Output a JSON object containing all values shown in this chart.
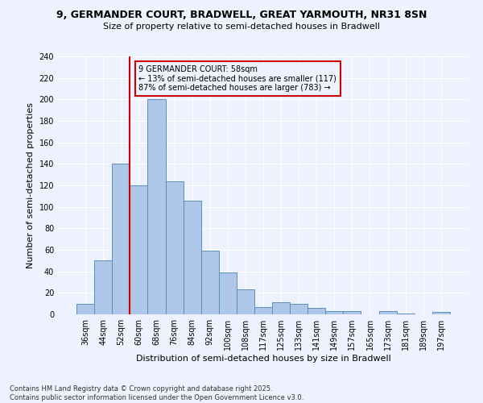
{
  "title_line1": "9, GERMANDER COURT, BRADWELL, GREAT YARMOUTH, NR31 8SN",
  "title_line2": "Size of property relative to semi-detached houses in Bradwell",
  "xlabel": "Distribution of semi-detached houses by size in Bradwell",
  "ylabel": "Number of semi-detached properties",
  "footer_line1": "Contains HM Land Registry data © Crown copyright and database right 2025.",
  "footer_line2": "Contains public sector information licensed under the Open Government Licence v3.0.",
  "annotation_line1": "9 GERMANDER COURT: 58sqm",
  "annotation_line2": "← 13% of semi-detached houses are smaller (117)",
  "annotation_line3": "87% of semi-detached houses are larger (783) →",
  "bar_categories": [
    "36sqm",
    "44sqm",
    "52sqm",
    "60sqm",
    "68sqm",
    "76sqm",
    "84sqm",
    "92sqm",
    "100sqm",
    "108sqm",
    "117sqm",
    "125sqm",
    "133sqm",
    "141sqm",
    "149sqm",
    "157sqm",
    "165sqm",
    "173sqm",
    "181sqm",
    "189sqm",
    "197sqm"
  ],
  "bar_values": [
    10,
    50,
    140,
    120,
    200,
    124,
    106,
    59,
    39,
    23,
    7,
    11,
    10,
    6,
    3,
    3,
    0,
    3,
    1,
    0,
    2
  ],
  "bar_color": "#aec6e8",
  "bar_edge_color": "#5a8fc0",
  "red_line_x": 2.5,
  "red_line_color": "#cc0000",
  "ylim": [
    0,
    240
  ],
  "yticks": [
    0,
    20,
    40,
    60,
    80,
    100,
    120,
    140,
    160,
    180,
    200,
    220,
    240
  ],
  "bg_color": "#eef2ff",
  "annotation_box_color": "#cc0000",
  "title_fontsize": 9,
  "subtitle_fontsize": 8,
  "ylabel_fontsize": 8,
  "xlabel_fontsize": 8,
  "tick_fontsize": 7,
  "footer_fontsize": 6
}
